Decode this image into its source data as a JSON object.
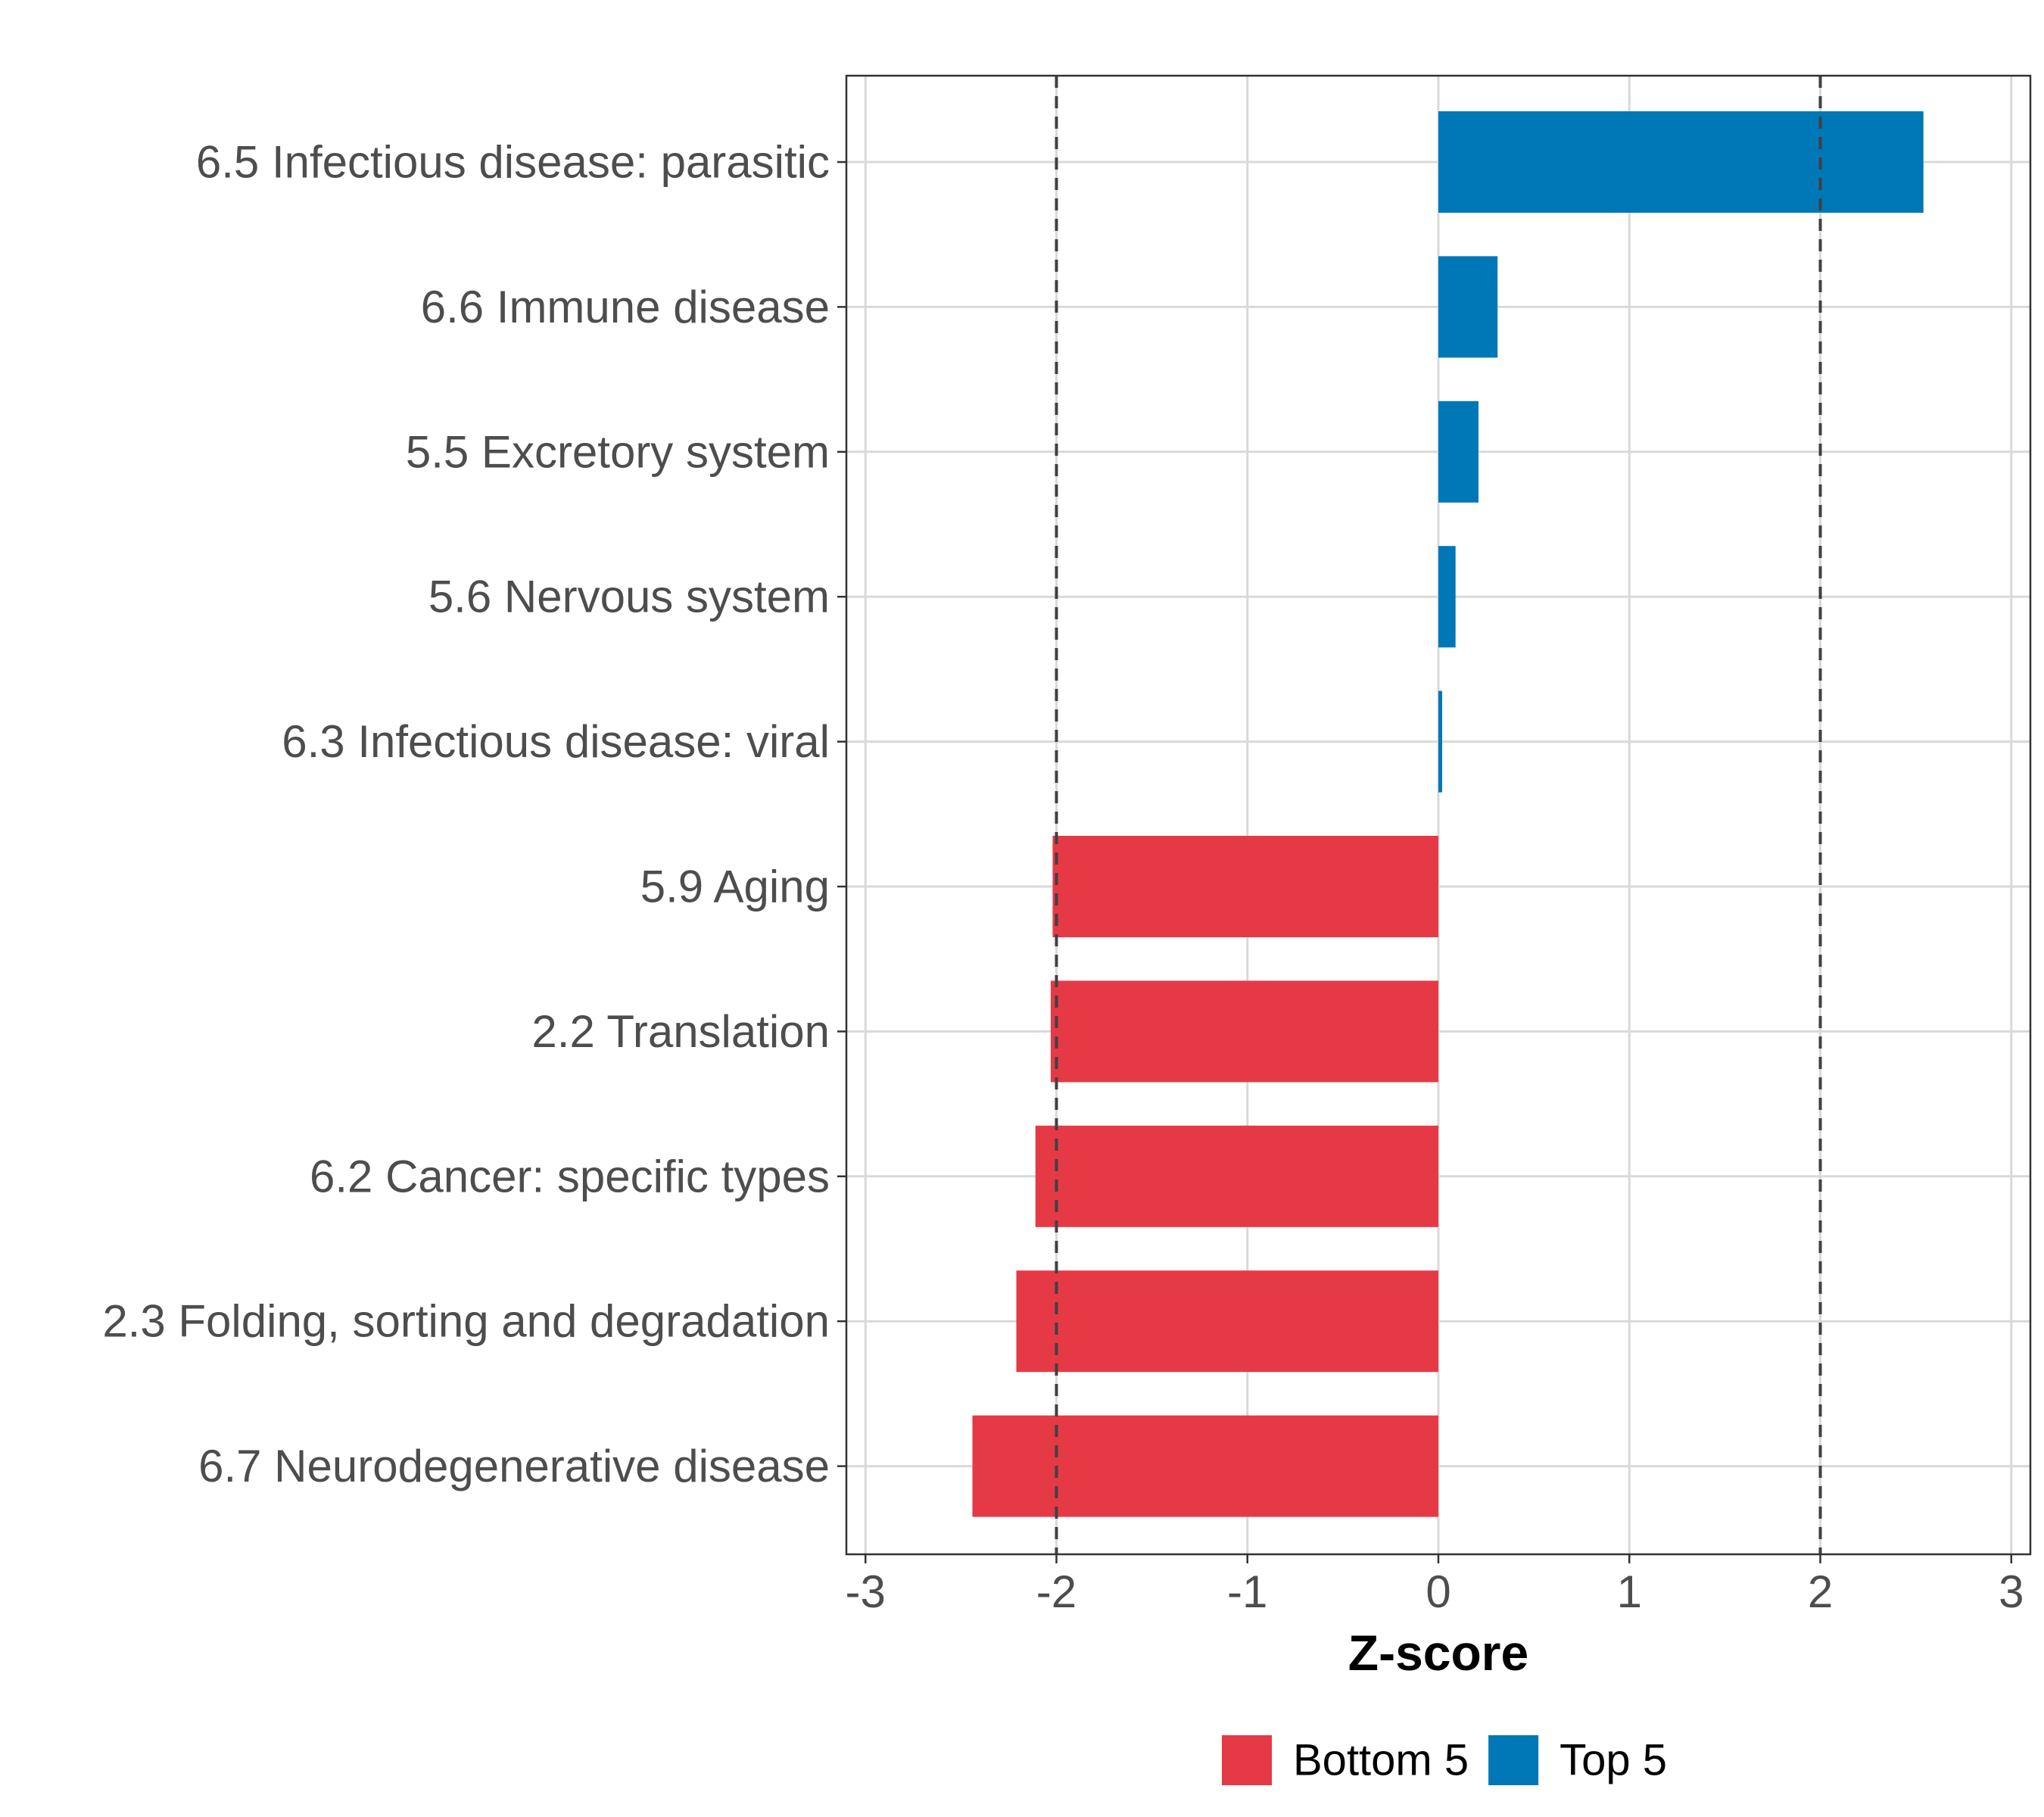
{
  "chart_data": {
    "type": "bar",
    "orientation": "horizontal",
    "title": "",
    "xlabel": "Z-score",
    "ylabel": "",
    "xlim": [
      -3.1,
      3.1
    ],
    "x_ticks": [
      -3,
      -2,
      -1,
      0,
      1,
      2,
      3
    ],
    "x_tick_labels": [
      "-3",
      "-2",
      "-1",
      "0",
      "1",
      "2",
      "3"
    ],
    "grid": true,
    "reference_lines": [
      -2,
      2
    ],
    "legend_position": "bottom",
    "series": [
      {
        "name": "Bottom 5",
        "color": "#E63946"
      },
      {
        "name": "Top 5",
        "color": "#0077B6"
      }
    ],
    "categories": [
      "6.5 Infectious disease: parasitic",
      "6.6 Immune disease",
      "5.5 Excretory system",
      "5.6 Nervous system",
      "6.3 Infectious disease: viral",
      "5.9 Aging",
      "2.2 Translation",
      "6.2 Cancer: specific types",
      "2.3 Folding, sorting and degradation",
      "6.7 Neurodegenerative disease"
    ],
    "values": [
      2.54,
      0.31,
      0.21,
      0.09,
      0.02,
      -2.02,
      -2.03,
      -2.11,
      -2.21,
      -2.44
    ],
    "groups": [
      "Top 5",
      "Top 5",
      "Top 5",
      "Top 5",
      "Top 5",
      "Bottom 5",
      "Bottom 5",
      "Bottom 5",
      "Bottom 5",
      "Bottom 5"
    ]
  }
}
